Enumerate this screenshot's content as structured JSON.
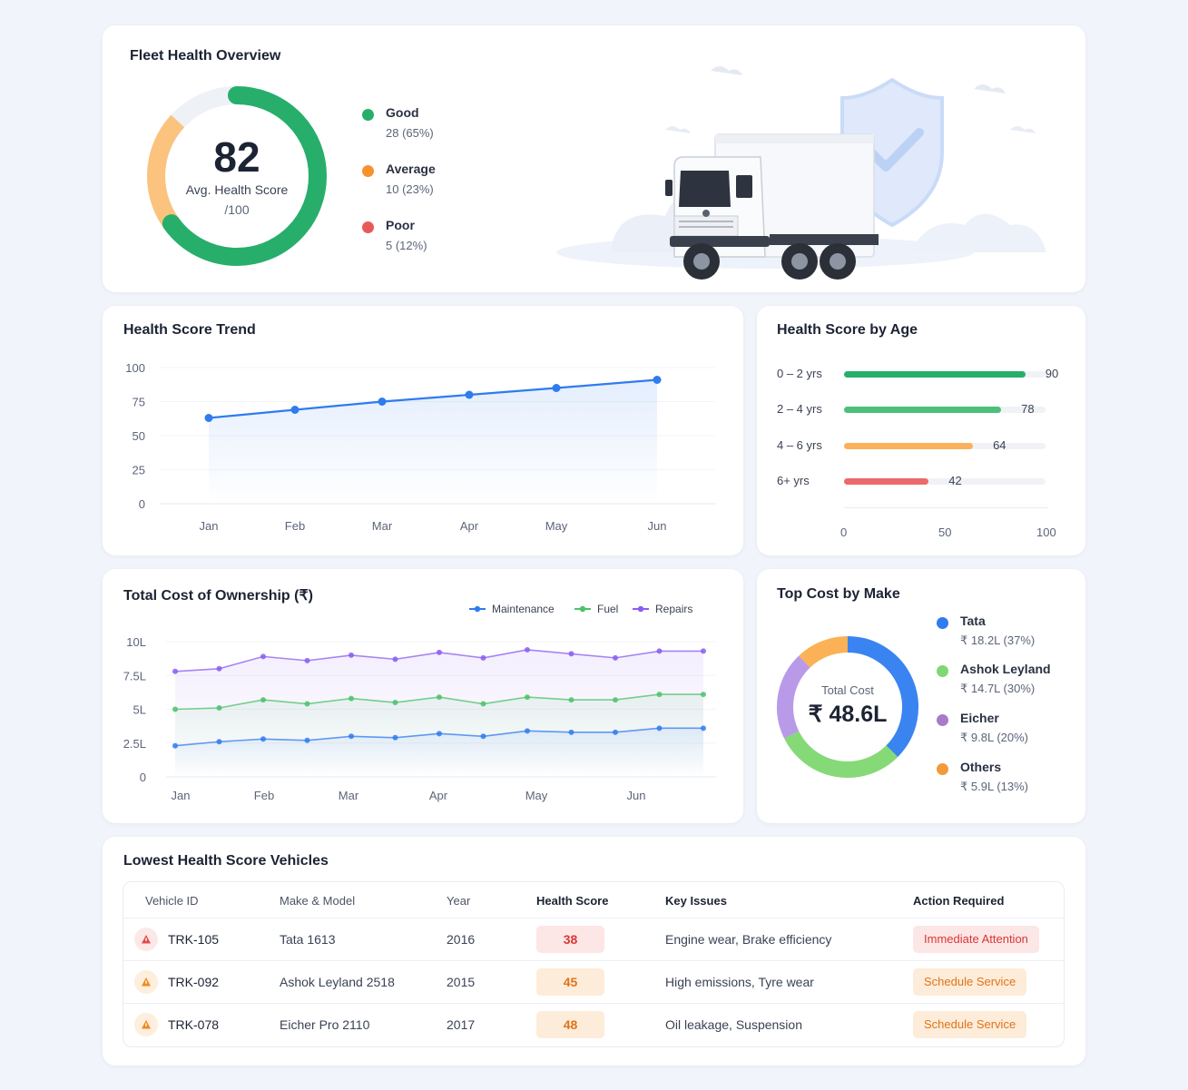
{
  "overview": {
    "title": "Fleet Health Overview",
    "score": "82",
    "score_label": "Avg. Health Score",
    "score_denominator": "/100",
    "score_value": 82,
    "legend": [
      {
        "name": "Good",
        "value": "28 (65%)",
        "color": "#27ae6b",
        "share": 65
      },
      {
        "name": "Average",
        "value": "10 (23%)",
        "color": "#f6a037",
        "share": 23
      },
      {
        "name": "Poor",
        "value": "5 (12%)",
        "color": "#e85a5a",
        "share": 12
      }
    ]
  },
  "trend": {
    "title": "Health Score Trend",
    "chart_data": {
      "type": "line",
      "categories": [
        "Jan",
        "Feb",
        "Mar",
        "Apr",
        "May",
        "Jun"
      ],
      "values": [
        63,
        69,
        75,
        80,
        85,
        91
      ],
      "ylim": [
        0,
        100
      ],
      "yticks": [
        "100",
        "75",
        "50",
        "25",
        "0"
      ],
      "color": "#2f7bf0",
      "grid": true
    }
  },
  "age": {
    "title": "Health Score by Age",
    "chart_data": {
      "type": "bar",
      "orientation": "horizontal",
      "categories": [
        "0 – 2 yrs",
        "2 – 4 yrs",
        "4 – 6 yrs",
        "6+ yrs"
      ],
      "values": [
        90,
        78,
        64,
        42
      ],
      "labels": [
        "90",
        "78",
        "64",
        "42"
      ],
      "colors": [
        "#27ae6b",
        "#4cc07a",
        "#fbb05c",
        "#ec6a6a"
      ],
      "xlim": [
        0,
        100
      ],
      "xticks": [
        "0",
        "50",
        "100"
      ]
    }
  },
  "tco": {
    "title": "Total Cost of Ownership (₹)",
    "chart_data": {
      "type": "line",
      "x": [
        "Jan",
        "",
        "Feb",
        "",
        "Mar",
        "",
        "Apr",
        "",
        "May",
        "",
        "Jun",
        "",
        ""
      ],
      "xticks": [
        "Jan",
        "Feb",
        "Mar",
        "Apr",
        "May",
        "Jun"
      ],
      "yticks": [
        "10L",
        "7.5L",
        "5L",
        "2.5L",
        "0"
      ],
      "ylim": [
        0,
        10
      ],
      "legend_position": "top-right",
      "series": [
        {
          "name": "Maintenance",
          "color": "#2f7bf0",
          "values": [
            2.3,
            2.6,
            2.8,
            2.7,
            3.0,
            2.9,
            3.2,
            3.0,
            3.4,
            3.3,
            3.3,
            3.6,
            3.6
          ]
        },
        {
          "name": "Fuel",
          "color": "#4cc26a",
          "values": [
            5.0,
            5.1,
            5.7,
            5.4,
            5.8,
            5.5,
            5.9,
            5.4,
            5.9,
            5.7,
            5.7,
            6.1,
            6.1
          ]
        },
        {
          "name": "Repairs",
          "color": "#8a5cf0",
          "values": [
            7.8,
            8.0,
            8.9,
            8.6,
            9.0,
            8.7,
            9.2,
            8.8,
            9.4,
            9.1,
            8.8,
            9.3,
            9.3
          ]
        }
      ]
    }
  },
  "make": {
    "title": "Top Cost by Make",
    "total_label": "Total Cost",
    "total_value": "₹ 48.6L",
    "chart_data": {
      "type": "pie",
      "donut": true,
      "categories": [
        "Tata",
        "Ashok Leyland",
        "Eicher",
        "Others"
      ],
      "values": [
        18.2,
        14.7,
        9.8,
        5.9
      ],
      "percent": [
        37,
        30,
        20,
        13
      ],
      "labels": [
        "₹ 18.2L (37%)",
        "₹ 14.7L (30%)",
        "₹ 9.8L (20%)",
        "₹ 5.9L (13%)"
      ],
      "colors": [
        "#3a84f2",
        "#86d977",
        "#b99ae8",
        "#fbb155"
      ]
    }
  },
  "lowest": {
    "title": "Lowest Health Score Vehicles",
    "headers": {
      "vehicle_id": "Vehicle ID",
      "make_model": "Make & Model",
      "year": "Year",
      "health_score": "Health Score",
      "key_issues": "Key Issues",
      "action": "Action Required"
    },
    "rows": [
      {
        "id": "TRK-105",
        "model": "Tata 1613",
        "year": "2016",
        "score": "38",
        "issues": "Engine wear, Brake efficiency",
        "action": "Immediate Attention",
        "severity": "red"
      },
      {
        "id": "TRK-092",
        "model": "Ashok Leyland 2518",
        "year": "2015",
        "score": "45",
        "issues": "High emissions, Tyre wear",
        "action": "Schedule Service",
        "severity": "orange"
      },
      {
        "id": "TRK-078",
        "model": "Eicher Pro 2110",
        "year": "2017",
        "score": "48",
        "issues": "Oil leakage, Suspension",
        "action": "Schedule Service",
        "severity": "orange"
      }
    ]
  }
}
